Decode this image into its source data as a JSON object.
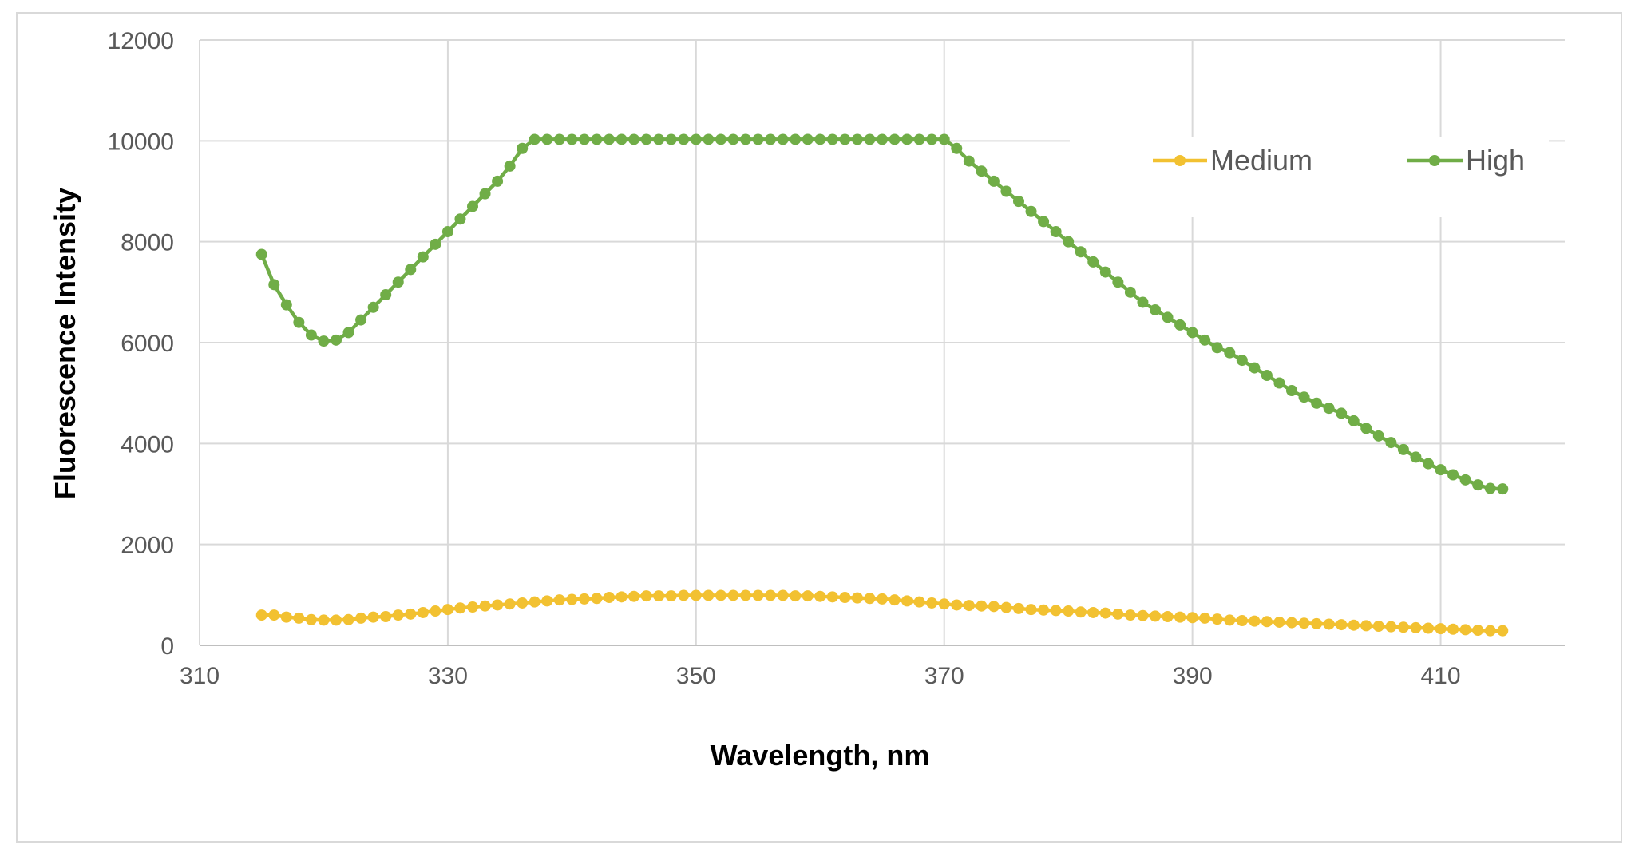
{
  "chart_data": {
    "type": "line",
    "title": "",
    "xlabel": "Wavelength, nm",
    "ylabel": "Fluorescence Intensity",
    "xlim": [
      310,
      420
    ],
    "ylim": [
      0,
      12000
    ],
    "x_ticks": [
      310,
      330,
      350,
      370,
      390,
      410
    ],
    "y_ticks": [
      0,
      2000,
      4000,
      6000,
      8000,
      10000,
      12000
    ],
    "grid": true,
    "legend_position": "top-right",
    "x": [
      315,
      316,
      317,
      318,
      319,
      320,
      321,
      322,
      323,
      324,
      325,
      326,
      327,
      328,
      329,
      330,
      331,
      332,
      333,
      334,
      335,
      336,
      337,
      338,
      339,
      340,
      341,
      342,
      343,
      344,
      345,
      346,
      347,
      348,
      349,
      350,
      351,
      352,
      353,
      354,
      355,
      356,
      357,
      358,
      359,
      360,
      361,
      362,
      363,
      364,
      365,
      366,
      367,
      368,
      369,
      370,
      371,
      372,
      373,
      374,
      375,
      376,
      377,
      378,
      379,
      380,
      381,
      382,
      383,
      384,
      385,
      386,
      387,
      388,
      389,
      390,
      391,
      392,
      393,
      394,
      395,
      396,
      397,
      398,
      399,
      400,
      401,
      402,
      403,
      404,
      405,
      406,
      407,
      408,
      409,
      410,
      411,
      412,
      413,
      414,
      415
    ],
    "series": [
      {
        "name": "Medium",
        "color": "#f2c131",
        "values": [
          600,
          600,
          560,
          540,
          510,
          500,
          500,
          510,
          540,
          560,
          570,
          600,
          620,
          650,
          680,
          710,
          740,
          760,
          780,
          800,
          820,
          840,
          860,
          880,
          900,
          910,
          920,
          930,
          950,
          960,
          970,
          980,
          980,
          980,
          990,
          990,
          990,
          990,
          990,
          990,
          990,
          990,
          990,
          980,
          980,
          970,
          960,
          950,
          940,
          930,
          920,
          900,
          880,
          860,
          840,
          820,
          800,
          790,
          780,
          770,
          750,
          730,
          710,
          700,
          690,
          680,
          660,
          650,
          640,
          620,
          600,
          590,
          580,
          570,
          560,
          550,
          540,
          520,
          500,
          490,
          480,
          470,
          460,
          450,
          440,
          430,
          420,
          410,
          400,
          390,
          380,
          370,
          360,
          350,
          340,
          330,
          320,
          310,
          300,
          290,
          290
        ]
      },
      {
        "name": "High",
        "color": "#70ad47",
        "values": [
          7750,
          7150,
          6750,
          6400,
          6150,
          6030,
          6050,
          6200,
          6450,
          6700,
          6950,
          7200,
          7450,
          7700,
          7950,
          8200,
          8450,
          8700,
          8950,
          9200,
          9500,
          9850,
          10030,
          10030,
          10030,
          10030,
          10030,
          10030,
          10030,
          10030,
          10030,
          10030,
          10030,
          10030,
          10030,
          10030,
          10030,
          10030,
          10030,
          10030,
          10030,
          10030,
          10030,
          10030,
          10030,
          10030,
          10030,
          10030,
          10030,
          10030,
          10030,
          10030,
          10030,
          10030,
          10030,
          10030,
          9850,
          9600,
          9400,
          9200,
          9000,
          8800,
          8600,
          8400,
          8200,
          8000,
          7800,
          7600,
          7400,
          7200,
          7000,
          6800,
          6650,
          6500,
          6350,
          6200,
          6050,
          5900,
          5800,
          5650,
          5500,
          5350,
          5200,
          5050,
          4920,
          4800,
          4700,
          4600,
          4450,
          4300,
          4150,
          4020,
          3880,
          3730,
          3600,
          3480,
          3380,
          3280,
          3180,
          3110,
          3100
        ]
      }
    ]
  }
}
